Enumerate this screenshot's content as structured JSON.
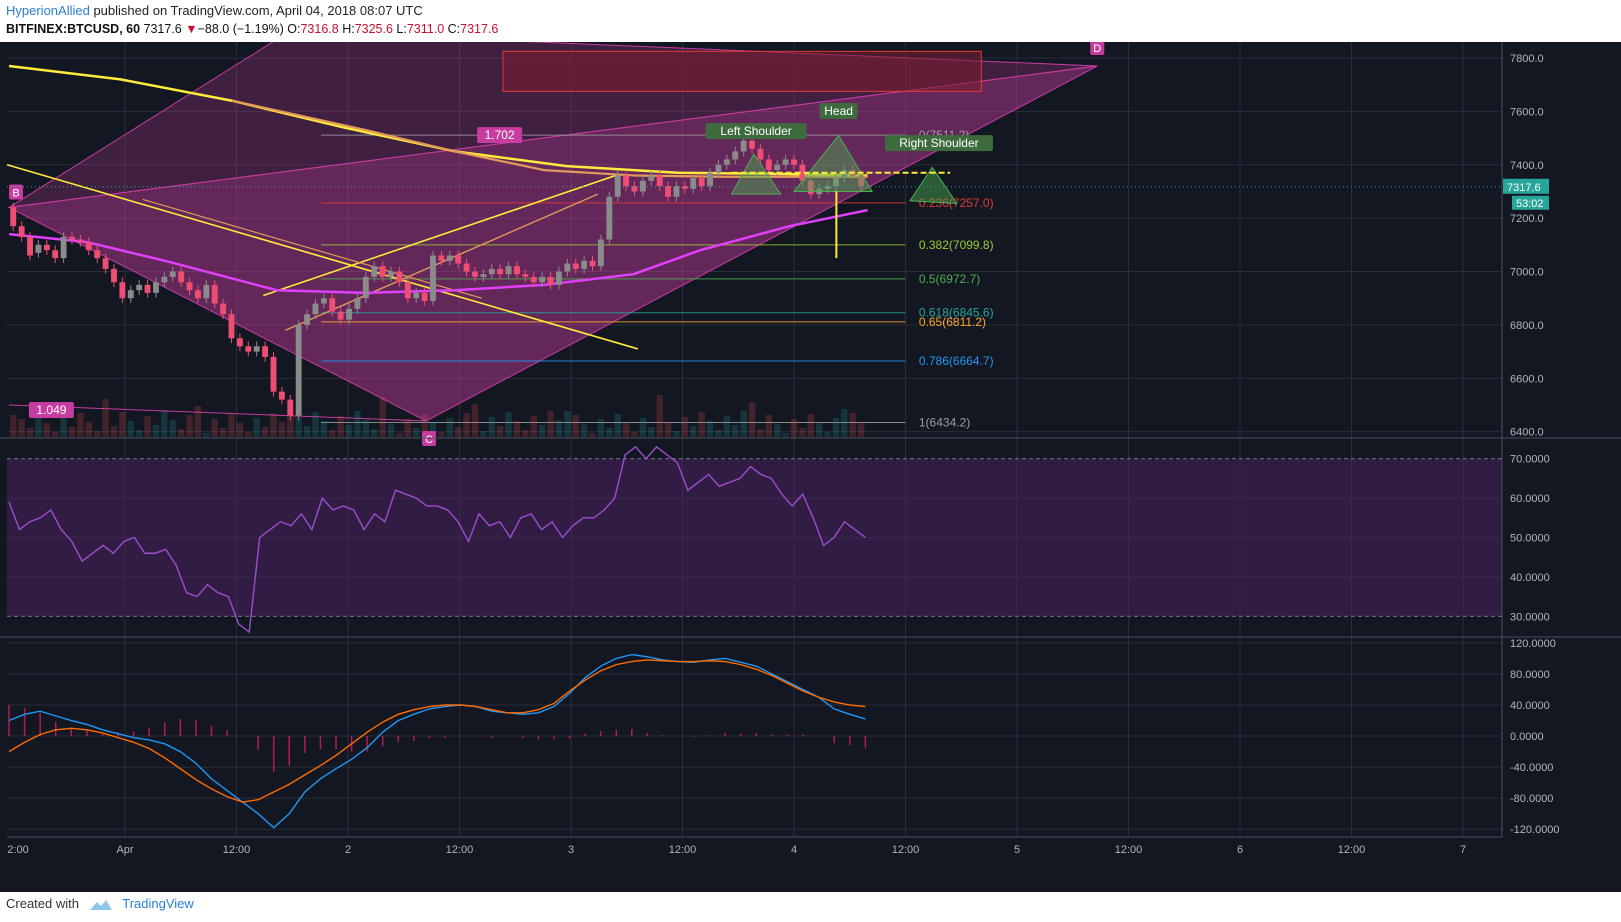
{
  "header": {
    "author": "HyperionAllied",
    "published": "published on TradingView.com, April 04, 2018 08:07 UTC",
    "symbol": "BITFINEX:BTCUSD, 60",
    "last": "7317.6",
    "change_arrow": "▼",
    "change": "−88.0 (−1.19%)",
    "open_label": "O:",
    "open": "7316.8",
    "high_label": "H:",
    "high": "7325.6",
    "low_label": "L:",
    "low": "7311.0",
    "close_label": "C:",
    "close": "7317.6"
  },
  "footer": {
    "created_with": "Created with",
    "brand": "TradingView"
  },
  "colors": {
    "background": "#131722",
    "grid": "#2a2e39",
    "up": "#8b8b8b",
    "down": "#ef4d73",
    "harmonic": "#c73ca0",
    "ma_slow": "#ffeb3b",
    "ma_mid": "#e39a5a",
    "ma_fast": "#e040fb",
    "rsi": "#9c4dcc",
    "macd": "#2196f3",
    "signal": "#ff6d00",
    "hs": "#4caf50"
  },
  "chart_data": [
    {
      "type": "candlestick",
      "ylim": [
        6380,
        7860
      ],
      "yticks": [
        "7800.0",
        "7600.0",
        "7400.0",
        "7200.0",
        "7000.0",
        "6800.0",
        "6600.0",
        "6400.0"
      ],
      "xticks": [
        "2:00",
        "Apr",
        "12:00",
        "2",
        "12:00",
        "3",
        "12:00",
        "4",
        "12:00",
        "5",
        "12:00",
        "6",
        "12:00",
        "7"
      ],
      "price_label": "7317.6",
      "countdown_label": "53:02",
      "fib_levels": [
        {
          "ratio": "0",
          "value": 7511.2,
          "label": "0(7511.2)",
          "color": "#9e9e9e"
        },
        {
          "ratio": "0.236",
          "value": 7257.0,
          "label": "0.236(7257.0)",
          "color": "#e53935"
        },
        {
          "ratio": "0.382",
          "value": 7099.8,
          "label": "0.382(7099.8)",
          "color": "#9acd32"
        },
        {
          "ratio": "0.5",
          "value": 6972.7,
          "label": "0.5(6972.7)",
          "color": "#4caf50"
        },
        {
          "ratio": "0.618",
          "value": 6845.6,
          "label": "0.618(6845.6)",
          "color": "#26a69a"
        },
        {
          "ratio": "0.65",
          "value": 6811.2,
          "label": "0.65(6811.2)",
          "color": "#ffa726"
        },
        {
          "ratio": "0.786",
          "value": 6664.7,
          "label": "0.786(6664.7)",
          "color": "#2196f3"
        },
        {
          "ratio": "1",
          "value": 6434.2,
          "label": "1(6434.2)",
          "color": "#9e9e9e"
        }
      ],
      "harmonic_points": [
        {
          "label": "B",
          "x": 0.0,
          "y": 7240
        },
        {
          "label": "C",
          "x": 1.35,
          "y": 6440
        },
        {
          "label": "D",
          "x": 4.36,
          "y": 7770
        }
      ],
      "ratios": [
        "1.049",
        "1.702"
      ],
      "pattern_labels": [
        "Left Shoulder",
        "Head",
        "Right Shoulder"
      ],
      "candles": [
        [
          7240,
          7170
        ],
        [
          7170,
          7130
        ],
        [
          7130,
          7060
        ],
        [
          7070,
          7100
        ],
        [
          7100,
          7080
        ],
        [
          7080,
          7050
        ],
        [
          7050,
          7130
        ],
        [
          7130,
          7120
        ],
        [
          7120,
          7110
        ],
        [
          7110,
          7080
        ],
        [
          7080,
          7050
        ],
        [
          7050,
          7010
        ],
        [
          7010,
          6960
        ],
        [
          6960,
          6900
        ],
        [
          6900,
          6930
        ],
        [
          6930,
          6950
        ],
        [
          6950,
          6920
        ],
        [
          6920,
          6960
        ],
        [
          6960,
          6980
        ],
        [
          6980,
          7000
        ],
        [
          7000,
          6960
        ],
        [
          6960,
          6930
        ],
        [
          6930,
          6900
        ],
        [
          6900,
          6950
        ],
        [
          6950,
          6880
        ],
        [
          6880,
          6840
        ],
        [
          6840,
          6750
        ],
        [
          6750,
          6720
        ],
        [
          6720,
          6700
        ],
        [
          6700,
          6720
        ],
        [
          6720,
          6680
        ],
        [
          6680,
          6550
        ],
        [
          6550,
          6520
        ],
        [
          6520,
          6460
        ],
        [
          6460,
          6800
        ],
        [
          6800,
          6840
        ],
        [
          6840,
          6880
        ],
        [
          6880,
          6900
        ],
        [
          6900,
          6850
        ],
        [
          6850,
          6820
        ],
        [
          6820,
          6860
        ],
        [
          6860,
          6900
        ],
        [
          6900,
          6980
        ],
        [
          6980,
          7020
        ],
        [
          7020,
          6980
        ],
        [
          6980,
          7000
        ],
        [
          7000,
          6960
        ],
        [
          6960,
          6900
        ],
        [
          6900,
          6920
        ],
        [
          6920,
          6890
        ],
        [
          6890,
          7060
        ],
        [
          7060,
          7040
        ],
        [
          7040,
          7060
        ],
        [
          7060,
          7030
        ],
        [
          7030,
          7000
        ],
        [
          7000,
          6980
        ],
        [
          6980,
          6990
        ],
        [
          6990,
          7010
        ],
        [
          7010,
          6990
        ],
        [
          6990,
          7020
        ],
        [
          7020,
          6990
        ],
        [
          6990,
          6980
        ],
        [
          6980,
          6960
        ],
        [
          6960,
          6980
        ],
        [
          6980,
          6950
        ],
        [
          6950,
          7000
        ],
        [
          7000,
          7030
        ],
        [
          7030,
          7010
        ],
        [
          7010,
          7040
        ],
        [
          7040,
          7020
        ],
        [
          7020,
          7120
        ],
        [
          7120,
          7280
        ],
        [
          7280,
          7360
        ],
        [
          7360,
          7320
        ],
        [
          7320,
          7300
        ],
        [
          7300,
          7340
        ],
        [
          7340,
          7360
        ],
        [
          7360,
          7320
        ],
        [
          7320,
          7280
        ],
        [
          7280,
          7320
        ],
        [
          7320,
          7310
        ],
        [
          7310,
          7350
        ],
        [
          7350,
          7320
        ],
        [
          7320,
          7370
        ],
        [
          7370,
          7400
        ],
        [
          7400,
          7420
        ],
        [
          7420,
          7450
        ],
        [
          7450,
          7490
        ],
        [
          7490,
          7460
        ],
        [
          7460,
          7420
        ],
        [
          7420,
          7380
        ],
        [
          7380,
          7400
        ],
        [
          7400,
          7420
        ],
        [
          7420,
          7400
        ],
        [
          7400,
          7340
        ],
        [
          7340,
          7290
        ],
        [
          7290,
          7310
        ],
        [
          7310,
          7320
        ],
        [
          7320,
          7350
        ],
        [
          7350,
          7380
        ],
        [
          7380,
          7360
        ],
        [
          7360,
          7320
        ]
      ],
      "ma_slow_points": [
        [
          0,
          7770
        ],
        [
          0.5,
          7720
        ],
        [
          1.0,
          7640
        ],
        [
          1.5,
          7540
        ],
        [
          2.0,
          7450
        ],
        [
          2.5,
          7395
        ],
        [
          3.0,
          7370
        ],
        [
          3.5,
          7365
        ],
        [
          3.85,
          7360
        ]
      ],
      "ma_mid_points": [
        [
          1.0,
          7640
        ],
        [
          1.6,
          7530
        ],
        [
          2.0,
          7450
        ],
        [
          2.4,
          7380
        ],
        [
          2.8,
          7360
        ],
        [
          3.2,
          7355
        ],
        [
          3.85,
          7355
        ]
      ],
      "ma_fast_points": [
        [
          0,
          7140
        ],
        [
          0.35,
          7110
        ],
        [
          0.7,
          7040
        ],
        [
          1.2,
          6930
        ],
        [
          1.6,
          6920
        ],
        [
          2.0,
          6930
        ],
        [
          2.4,
          6950
        ],
        [
          2.8,
          6990
        ],
        [
          3.1,
          7080
        ],
        [
          3.5,
          7170
        ],
        [
          3.85,
          7230
        ]
      ]
    },
    {
      "type": "line",
      "name": "RSI",
      "ylim": [
        25,
        75
      ],
      "yticks": [
        "70.0000",
        "60.0000",
        "50.0000",
        "40.0000",
        "30.0000"
      ],
      "bands": [
        30,
        70
      ],
      "values": [
        59,
        52,
        54,
        55,
        57,
        52,
        49,
        44,
        46,
        48,
        46,
        49,
        50,
        46,
        46,
        47,
        43,
        36,
        35,
        38,
        36,
        35,
        28,
        26,
        50,
        52,
        54,
        53,
        56,
        52,
        60,
        57,
        58,
        57,
        52,
        56,
        54,
        62,
        61,
        60,
        58,
        58,
        57,
        54,
        49,
        56,
        53,
        54,
        50,
        55,
        56,
        52,
        54,
        50,
        53,
        55,
        55,
        57,
        60,
        71,
        73,
        70,
        73,
        71,
        69,
        62,
        64,
        66,
        63,
        64,
        65,
        68,
        66,
        65,
        61,
        58,
        61,
        55,
        48,
        50,
        54,
        52,
        50
      ]
    },
    {
      "type": "line",
      "name": "MACD",
      "ylim": [
        -130,
        125
      ],
      "yticks": [
        "120.0000",
        "80.0000",
        "40.0000",
        "0.0000",
        "-40.0000",
        "-80.0000",
        "-120.0000"
      ],
      "macd": [
        20,
        28,
        32,
        26,
        20,
        15,
        8,
        3,
        -2,
        -5,
        -10,
        -20,
        -35,
        -55,
        -70,
        -85,
        -100,
        -118,
        -100,
        -72,
        -55,
        -42,
        -30,
        -15,
        5,
        20,
        28,
        35,
        38,
        40,
        38,
        32,
        30,
        28,
        30,
        38,
        55,
        75,
        90,
        100,
        105,
        102,
        98,
        96,
        95,
        98,
        100,
        95,
        90,
        80,
        70,
        60,
        50,
        35,
        28,
        22
      ],
      "signal": [
        -20,
        -8,
        2,
        8,
        10,
        8,
        4,
        -2,
        -8,
        -16,
        -28,
        -42,
        -56,
        -68,
        -78,
        -85,
        -82,
        -72,
        -62,
        -50,
        -38,
        -25,
        -10,
        5,
        18,
        28,
        34,
        38,
        40,
        40,
        38,
        34,
        30,
        30,
        34,
        42,
        58,
        72,
        84,
        92,
        96,
        98,
        97,
        96,
        96,
        97,
        96,
        92,
        86,
        78,
        68,
        58,
        50,
        44,
        40,
        38
      ]
    }
  ]
}
